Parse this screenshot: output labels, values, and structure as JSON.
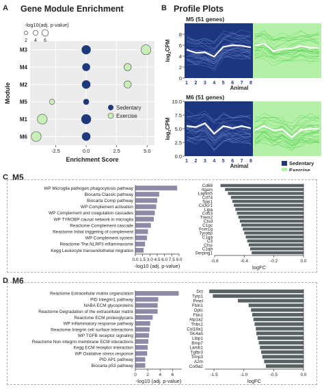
{
  "panels": {
    "A": {
      "letter": "A",
      "title": "Gene Module Enrichment"
    },
    "B": {
      "letter": "B",
      "title": "Profile Plots"
    },
    "C": {
      "letter": "C",
      "title": "M5"
    },
    "D": {
      "letter": "D",
      "title": "M6"
    }
  },
  "colors": {
    "sedentary": "#1f3a7a",
    "exercise": "#c9efb9",
    "bar_purple": "#8e8aa8",
    "bar_gray": "#586264",
    "profile_dark": "#1e357f",
    "profile_light": "#b5f0a8"
  },
  "chart_data": [
    {
      "id": "enrichment",
      "type": "scatter",
      "xlabel": "Enrichment Score",
      "ylabel": "Module",
      "xticks": [
        -2.5,
        0.0,
        2.5,
        5.0
      ],
      "xtick_labels": [
        "-2.5",
        "0.0",
        "2.5",
        "5.0"
      ],
      "xlim": [
        -4.6,
        5.6
      ],
      "categories": [
        "M3",
        "M4",
        "M2",
        "M5",
        "M1",
        "M6"
      ],
      "size_legend": {
        "title": "-log10(adj. p-value)",
        "values": [
          2,
          4,
          6
        ],
        "labels": [
          "2",
          "4",
          "6"
        ]
      },
      "legend": [
        {
          "name": "Sedentary",
          "color": "#1f3a7a"
        },
        {
          "name": "Exercise",
          "color": "#c9efb9"
        }
      ],
      "series": [
        {
          "name": "Sedentary",
          "points": [
            {
              "module": "M3",
              "x": 0.0,
              "size": 5.5
            },
            {
              "module": "M4",
              "x": 0.0,
              "size": 4.5
            },
            {
              "module": "M2",
              "x": 0.0,
              "size": 5.0
            },
            {
              "module": "M5",
              "x": 0.0,
              "size": 3.0
            },
            {
              "module": "M1",
              "x": 0.0,
              "size": 6.0
            },
            {
              "module": "M6",
              "x": 0.0,
              "size": 5.0
            }
          ]
        },
        {
          "name": "Exercise",
          "points": [
            {
              "module": "M3",
              "x": 4.9,
              "size": 6.0
            },
            {
              "module": "M4",
              "x": 3.4,
              "size": 4.0
            },
            {
              "module": "M2",
              "x": 3.4,
              "size": 4.0
            },
            {
              "module": "M5",
              "x": -2.8,
              "size": 2.5
            },
            {
              "module": "M1",
              "x": -3.6,
              "size": 6.0
            },
            {
              "module": "M6",
              "x": -4.1,
              "size": 6.0
            }
          ]
        }
      ]
    },
    {
      "id": "profile-m5",
      "type": "line",
      "title": "M5 (51 genes)",
      "xlabel": "Animal",
      "ylabel": "log2CPM",
      "ylim": [
        0,
        10
      ],
      "yticks": [
        0,
        2,
        4,
        6,
        8
      ],
      "x": [
        1,
        2,
        3,
        4,
        5,
        6,
        7,
        8
      ],
      "mean_sedentary": [
        5.2,
        4.6,
        4.7,
        3.9,
        5.7,
        6.0,
        5.9,
        5.6
      ],
      "mean_exercise": [
        5.9,
        6.3,
        4.9,
        5.3,
        5.4,
        5.9,
        5.5,
        5.5
      ]
    },
    {
      "id": "profile-m6",
      "type": "line",
      "title": "M6 (51 genes)",
      "xlabel": "Animal",
      "ylabel": "log2CPM",
      "ylim": [
        0,
        10
      ],
      "yticks": [
        0.0,
        2.5,
        5.0,
        7.5,
        10.0
      ],
      "x": [
        1,
        2,
        3,
        4,
        5,
        6,
        7,
        8
      ],
      "mean_sedentary": [
        5.5,
        5.3,
        6.0,
        4.1,
        5.5,
        5.1,
        5.5,
        5.1
      ],
      "mean_exercise": [
        4.7,
        5.5,
        4.7,
        4.9,
        3.4,
        4.8,
        5.0,
        5.0
      ],
      "legend": [
        {
          "name": "Sedentary",
          "color": "#1e357f"
        },
        {
          "name": "Exercise",
          "color": "#b5f0a8"
        }
      ]
    },
    {
      "id": "m5-pathways",
      "type": "bar",
      "xlabel": "-log10 (adj. p-value)",
      "xlim": [
        0,
        9
      ],
      "xticks": [
        0.0,
        1.5,
        3.0,
        4.5,
        6.0,
        7.5,
        9.0
      ],
      "xtick_labels": [
        "0.0",
        "1.5",
        "3.0",
        "4.5",
        "6.0",
        "7.5",
        "9.0"
      ],
      "categories": [
        "WP Microglia pathogen phagocytosis pathway",
        "Biocarta Classic pathway",
        "Biocarta Comp pathway",
        "WP Complement activation",
        "WP Complement and coagulation cascades",
        "WP TYROBP causal network in microglia",
        "Reactome Complement cascade",
        "Reactome Initial triggering of complement",
        "WP Complement system",
        "Reactome The NLRP3 inflammasome",
        "Kegg Leukocyte transendothelial migration"
      ],
      "values": [
        8.6,
        4.9,
        4.5,
        4.3,
        4.0,
        3.8,
        3.2,
        2.6,
        2.4,
        2.0,
        1.7
      ]
    },
    {
      "id": "m5-genes",
      "type": "bar",
      "xlabel": "logFC",
      "xlim": [
        -0.6,
        0.0
      ],
      "xticks": [
        -0.6,
        -0.4,
        -0.2,
        0.0
      ],
      "xtick_labels": [
        "-0.6",
        "-0.4",
        "-0.2",
        "0.0"
      ],
      "categories": [
        "Cd68",
        "Itgam",
        "Laptm5",
        "Cd74",
        "Spp1",
        "Cx3cr1",
        "Lipa",
        "Cd53",
        "Trem2",
        "Ctsd",
        "C1qc",
        "Fcer1g",
        "Tyrobp",
        "C1qa",
        "C3",
        "Ctss",
        "C1qb",
        "Serping1"
      ],
      "values": [
        -0.56,
        -0.53,
        -0.51,
        -0.49,
        -0.48,
        -0.47,
        -0.46,
        -0.45,
        -0.44,
        -0.43,
        -0.42,
        -0.41,
        -0.4,
        -0.39,
        -0.38,
        -0.37,
        -0.36,
        -0.35
      ]
    },
    {
      "id": "m6-pathways",
      "type": "bar",
      "xlabel": "-log10 (adj. p-value)",
      "xlim": [
        0,
        7.5
      ],
      "xticks": [
        0,
        2,
        4,
        6
      ],
      "xtick_labels": [
        "0",
        "2",
        "4",
        "6"
      ],
      "categories": [
        "Reactome Extracellular matrix organization",
        "PID Integrin1 pathway",
        "NABA ECM glycoproteins",
        "Reactome Degradation of the extracellular matrix",
        "Reactome ECM proteoglycans",
        "WP Inflammatory response pathway",
        "Reactome Integrin cell surface interactions",
        "WP TGFB receptor signaling",
        "Reactome Non integrin membrane ECM interactions",
        "Kegg ECM receptor interaction",
        "WP Oxidative stress response",
        "PID AP1 pathway",
        "Biocarta p53 pathway"
      ],
      "values": [
        7.0,
        3.7,
        3.6,
        3.6,
        2.8,
        2.4,
        2.3,
        2.2,
        2.1,
        2.0,
        1.9,
        1.6,
        1.6
      ]
    },
    {
      "id": "m6-genes",
      "type": "bar",
      "xlabel": "logFC",
      "xlim": [
        -1.65,
        0.0
      ],
      "xticks": [
        -1.5,
        -1.0,
        -0.5,
        0.0
      ],
      "xtick_labels": [
        "-1.5",
        "-1.0",
        "-0.5",
        "0.0"
      ],
      "categories": [
        "Dct",
        "Tyrp1",
        "Pmel",
        "Fbln1",
        "Optc",
        "Fbn1",
        "Atp1a2",
        "Thbs1",
        "Col18a1",
        "Slc4a5",
        "Ltbp1",
        "Bmp7",
        "Lamb1",
        "Tgfbr3",
        "Timp3",
        "A2m",
        "Col9a2"
      ],
      "values": [
        -1.58,
        -1.52,
        -1.1,
        -0.92,
        -0.88,
        -0.86,
        -0.84,
        -0.82,
        -0.8,
        -0.79,
        -0.77,
        -0.75,
        -0.73,
        -0.71,
        -0.69,
        -0.66,
        -0.63
      ]
    }
  ]
}
